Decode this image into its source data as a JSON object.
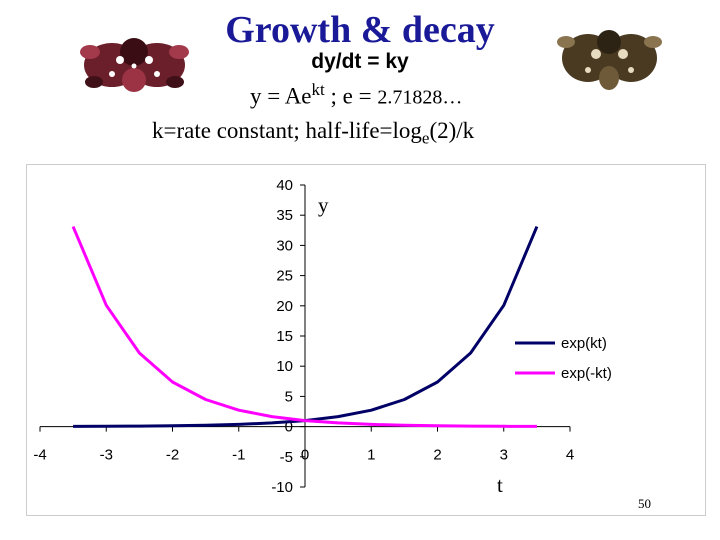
{
  "slide": {
    "title": "Growth & decay",
    "equation_1": "dy/dt = ky",
    "equation_2": {
      "prefix": "y = Ae",
      "superscript": "kt",
      "middle": " ;  e = ",
      "e_value": "2.71828…"
    },
    "equation_3": {
      "prefix": "k=rate constant; half-life=log",
      "subscript": "e",
      "suffix": "(2)/k"
    },
    "page_number": "50",
    "images": [
      "inkblot-left",
      "inkblot-right"
    ]
  },
  "chart_data": {
    "type": "line",
    "xlabel": "t",
    "ylabel": "y",
    "xlim": [
      -4,
      4
    ],
    "ylim": [
      -10,
      40
    ],
    "x_ticks": [
      -4,
      -3,
      -2,
      -1,
      0,
      1,
      2,
      3,
      4
    ],
    "y_ticks": [
      -10,
      -5,
      0,
      5,
      10,
      15,
      20,
      25,
      30,
      35,
      40
    ],
    "grid": false,
    "legend_position": "right",
    "series": [
      {
        "name": "exp(kt)",
        "color": "#000066",
        "x": [
          -3.5,
          -3.0,
          -2.5,
          -2.0,
          -1.5,
          -1.0,
          -0.5,
          0.0,
          0.5,
          1.0,
          1.5,
          2.0,
          2.5,
          3.0,
          3.5
        ],
        "y": [
          0.03,
          0.05,
          0.08,
          0.14,
          0.22,
          0.37,
          0.61,
          1.0,
          1.65,
          2.72,
          4.48,
          7.39,
          12.18,
          20.09,
          33.12
        ]
      },
      {
        "name": "exp(-kt)",
        "color": "#ff00ff",
        "x": [
          -3.5,
          -3.0,
          -2.5,
          -2.0,
          -1.5,
          -1.0,
          -0.5,
          0.0,
          0.5,
          1.0,
          1.5,
          2.0,
          2.5,
          3.0,
          3.5
        ],
        "y": [
          33.12,
          20.09,
          12.18,
          7.39,
          4.48,
          2.72,
          1.65,
          1.0,
          0.61,
          0.37,
          0.22,
          0.14,
          0.08,
          0.05,
          0.03
        ]
      }
    ]
  }
}
